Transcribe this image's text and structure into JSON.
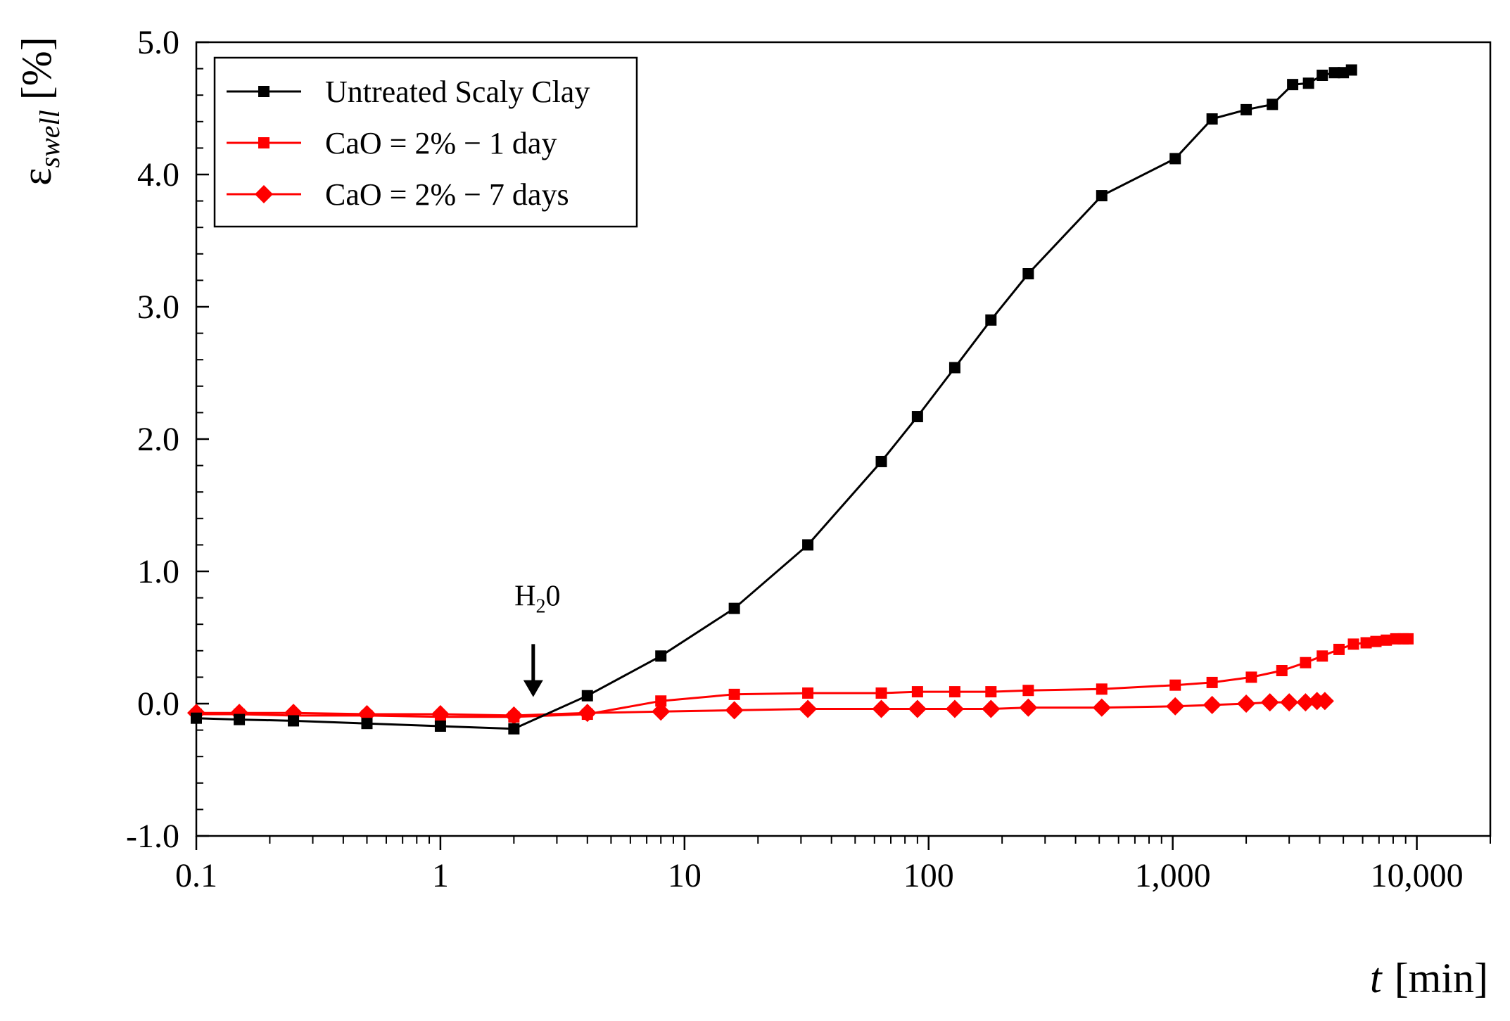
{
  "chart_data": {
    "type": "line",
    "title": "",
    "xlabel": {
      "var": "t",
      "unit": "[min]"
    },
    "ylabel": {
      "base": "ε",
      "sub": "swell",
      "unit": "[%]"
    },
    "xscale": "log",
    "xlim": [
      0.1,
      20000
    ],
    "ylim": [
      -1.0,
      5.0
    ],
    "grid": false,
    "legend_position": "top-left",
    "x_tick_labels": [
      {
        "value": 0.1,
        "label": "0.1"
      },
      {
        "value": 1,
        "label": "1"
      },
      {
        "value": 10,
        "label": "10"
      },
      {
        "value": 100,
        "label": "100"
      },
      {
        "value": 1000,
        "label": "1,000"
      },
      {
        "value": 10000,
        "label": "10,000"
      }
    ],
    "y_tick_labels": [
      {
        "value": -1.0,
        "label": "-1.0"
      },
      {
        "value": 0.0,
        "label": "0.0"
      },
      {
        "value": 1.0,
        "label": "1.0"
      },
      {
        "value": 2.0,
        "label": "2.0"
      },
      {
        "value": 3.0,
        "label": "3.0"
      },
      {
        "value": 4.0,
        "label": "4.0"
      },
      {
        "value": 5.0,
        "label": "5.0"
      }
    ],
    "annotation": {
      "base": "H",
      "sub": "2",
      "rest": "0",
      "x": 2.4,
      "arrow_from_y": 0.45,
      "arrow_to_y": 0.05
    },
    "series": [
      {
        "name": "Untreated Scaly Clay",
        "color": "#000000",
        "marker": "square",
        "x": [
          0.1,
          0.15,
          0.25,
          0.5,
          1,
          2,
          4,
          8,
          16,
          32,
          64,
          90,
          128,
          180,
          256,
          512,
          1024,
          1450,
          2000,
          2560,
          3100,
          3600,
          4100,
          4600,
          5000,
          5400
        ],
        "y": [
          -0.11,
          -0.12,
          -0.13,
          -0.15,
          -0.17,
          -0.19,
          0.06,
          0.36,
          0.72,
          1.2,
          1.83,
          2.17,
          2.54,
          2.9,
          3.25,
          3.84,
          4.12,
          4.42,
          4.49,
          4.53,
          4.68,
          4.69,
          4.75,
          4.77,
          4.77,
          4.79
        ]
      },
      {
        "name": "CaO = 2% − 1 day",
        "color": "#ff0000",
        "marker": "square",
        "x": [
          0.1,
          0.15,
          0.25,
          0.5,
          1,
          2,
          4,
          8,
          16,
          32,
          64,
          90,
          128,
          180,
          256,
          512,
          1024,
          1450,
          2100,
          2800,
          3500,
          4100,
          4800,
          5500,
          6200,
          6800,
          7500,
          8200,
          8800,
          9200
        ],
        "y": [
          -0.08,
          -0.08,
          -0.09,
          -0.09,
          -0.1,
          -0.1,
          -0.08,
          0.02,
          0.07,
          0.08,
          0.08,
          0.09,
          0.09,
          0.09,
          0.1,
          0.11,
          0.14,
          0.16,
          0.2,
          0.25,
          0.31,
          0.36,
          0.41,
          0.45,
          0.46,
          0.47,
          0.48,
          0.49,
          0.49,
          0.49
        ]
      },
      {
        "name": "CaO = 2% − 7 days",
        "color": "#ff0000",
        "marker": "diamond",
        "x": [
          0.1,
          0.15,
          0.25,
          0.5,
          1,
          2,
          4,
          8,
          16,
          32,
          64,
          90,
          128,
          180,
          256,
          512,
          1024,
          1450,
          2000,
          2500,
          3000,
          3500,
          3900,
          4200
        ],
        "y": [
          -0.07,
          -0.07,
          -0.07,
          -0.08,
          -0.08,
          -0.09,
          -0.07,
          -0.06,
          -0.05,
          -0.04,
          -0.04,
          -0.04,
          -0.04,
          -0.04,
          -0.03,
          -0.03,
          -0.02,
          -0.01,
          0.0,
          0.01,
          0.01,
          0.01,
          0.02,
          0.02
        ]
      }
    ]
  }
}
